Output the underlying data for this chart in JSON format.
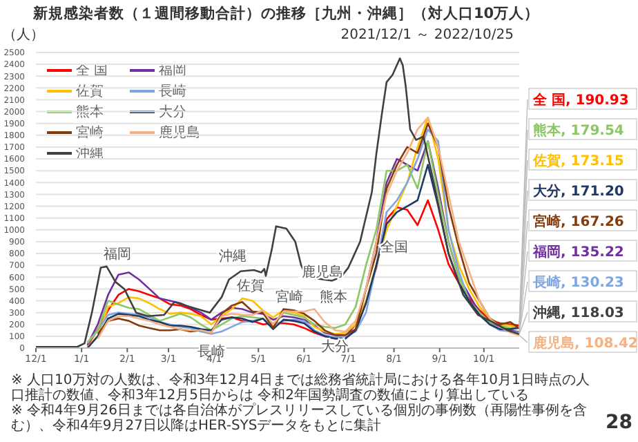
{
  "chart_data": {
    "type": "line",
    "title": "新規感染者数（１週間移動合計）の推移［九州・沖縄］（対人口10万人）",
    "subtitle": "2021/12/1 ～ 2022/10/25",
    "ylabel": "（人）",
    "x": [
      "2022-01-05",
      "2022-01-12",
      "2022-01-19",
      "2022-01-26",
      "2022-02-02",
      "2022-02-09",
      "2022-02-16",
      "2022-02-23",
      "2022-03-02",
      "2022-03-09",
      "2022-03-16",
      "2022-03-23",
      "2022-03-30",
      "2022-04-06",
      "2022-04-13",
      "2022-04-20",
      "2022-04-27",
      "2022-05-04",
      "2022-05-11",
      "2022-05-18",
      "2022-05-25",
      "2022-06-01",
      "2022-06-08",
      "2022-06-15",
      "2022-06-22",
      "2022-06-29",
      "2022-07-06",
      "2022-07-13",
      "2022-07-20",
      "2022-07-27",
      "2022-08-03",
      "2022-08-10",
      "2022-08-17",
      "2022-08-24",
      "2022-08-31",
      "2022-09-07",
      "2022-09-14",
      "2022-09-21",
      "2022-09-28",
      "2022-10-05",
      "2022-10-12",
      "2022-10-19",
      "2022-10-25"
    ],
    "series": [
      {
        "name": "全 国",
        "color": "#ff0000",
        "values": [
          20,
          160,
          320,
          450,
          500,
          480,
          450,
          420,
          370,
          360,
          330,
          280,
          240,
          250,
          260,
          230,
          230,
          200,
          210,
          210,
          200,
          170,
          130,
          100,
          80,
          80,
          160,
          390,
          680,
          1090,
          1190,
          1170,
          1040,
          1250,
          1000,
          710,
          550,
          420,
          320,
          240,
          210,
          200,
          190.93
        ],
        "value_labels": [
          null,
          null,
          null,
          null,
          null,
          null,
          null,
          null,
          null,
          null,
          null,
          null,
          null,
          null,
          null,
          null,
          null,
          null,
          null,
          null,
          null,
          null,
          null,
          null,
          null,
          null,
          null,
          null,
          null,
          null,
          null,
          null,
          null,
          null,
          null,
          null,
          null,
          null,
          null,
          null,
          null,
          null,
          "全 国, 190.93"
        ]
      },
      {
        "name": "福岡",
        "color": "#7030a0",
        "values": [
          30,
          200,
          450,
          620,
          640,
          580,
          500,
          420,
          400,
          380,
          340,
          300,
          240,
          300,
          340,
          330,
          300,
          290,
          240,
          270,
          260,
          240,
          190,
          130,
          110,
          100,
          200,
          500,
          900,
          1400,
          1600,
          1550,
          1500,
          1750,
          1350,
          900,
          600,
          450,
          300,
          220,
          180,
          150,
          135.22
        ],
        "value_labels": [
          null,
          null,
          null,
          null,
          null,
          null,
          null,
          null,
          null,
          null,
          null,
          null,
          null,
          null,
          null,
          null,
          null,
          null,
          null,
          null,
          null,
          null,
          null,
          null,
          null,
          null,
          null,
          null,
          null,
          null,
          null,
          null,
          null,
          null,
          null,
          null,
          null,
          null,
          null,
          null,
          null,
          null,
          "福岡, 135.22"
        ]
      },
      {
        "name": "佐賀",
        "color": "#ffc000",
        "values": [
          10,
          100,
          350,
          380,
          430,
          420,
          380,
          330,
          290,
          300,
          290,
          270,
          200,
          270,
          330,
          420,
          400,
          320,
          260,
          320,
          300,
          270,
          180,
          140,
          120,
          130,
          200,
          400,
          700,
          1000,
          1200,
          1400,
          1700,
          1950,
          1600,
          1000,
          700,
          500,
          350,
          250,
          200,
          190,
          173.15
        ],
        "value_labels": [
          null,
          null,
          null,
          null,
          null,
          null,
          null,
          null,
          null,
          null,
          null,
          null,
          null,
          null,
          null,
          null,
          null,
          null,
          null,
          null,
          null,
          null,
          null,
          null,
          null,
          null,
          null,
          null,
          null,
          null,
          null,
          null,
          null,
          null,
          null,
          null,
          null,
          null,
          null,
          null,
          null,
          null,
          "佐賀, 173.15"
        ]
      },
      {
        "name": "長崎",
        "color": "#7ea6e0",
        "values": [
          40,
          150,
          280,
          300,
          290,
          280,
          260,
          220,
          200,
          180,
          170,
          140,
          120,
          140,
          180,
          220,
          230,
          250,
          190,
          230,
          240,
          230,
          150,
          110,
          90,
          100,
          140,
          300,
          700,
          1150,
          1250,
          1400,
          1600,
          1850,
          1750,
          1000,
          650,
          400,
          300,
          200,
          150,
          140,
          130.23
        ],
        "value_labels": [
          null,
          null,
          null,
          null,
          null,
          null,
          null,
          null,
          null,
          null,
          null,
          null,
          null,
          null,
          null,
          null,
          null,
          null,
          null,
          null,
          null,
          null,
          null,
          null,
          null,
          null,
          null,
          null,
          null,
          null,
          null,
          null,
          null,
          null,
          null,
          null,
          null,
          null,
          null,
          null,
          null,
          null,
          "長崎, 130.23"
        ]
      },
      {
        "name": "熊本",
        "color": "#8cc665",
        "values": [
          50,
          150,
          400,
          370,
          340,
          330,
          280,
          230,
          260,
          290,
          260,
          200,
          150,
          200,
          250,
          270,
          260,
          250,
          180,
          300,
          280,
          260,
          200,
          180,
          170,
          200,
          350,
          700,
          1000,
          1500,
          1500,
          1550,
          1350,
          1750,
          1300,
          900,
          600,
          400,
          300,
          220,
          190,
          170,
          179.54
        ],
        "value_labels": [
          null,
          null,
          null,
          null,
          null,
          null,
          null,
          null,
          null,
          null,
          null,
          null,
          null,
          null,
          null,
          null,
          null,
          null,
          null,
          null,
          null,
          null,
          null,
          null,
          null,
          null,
          null,
          null,
          null,
          null,
          null,
          null,
          null,
          null,
          null,
          null,
          null,
          null,
          null,
          null,
          null,
          null,
          "熊本, 179.54"
        ]
      },
      {
        "name": "大分",
        "color": "#1f3864",
        "values": [
          0,
          100,
          250,
          290,
          280,
          270,
          240,
          220,
          190,
          190,
          180,
          160,
          150,
          240,
          260,
          250,
          220,
          250,
          160,
          240,
          230,
          210,
          140,
          100,
          80,
          80,
          150,
          380,
          700,
          1050,
          1150,
          1200,
          1250,
          1550,
          1200,
          800,
          550,
          400,
          280,
          200,
          160,
          160,
          171.2
        ],
        "value_labels": [
          null,
          null,
          null,
          null,
          null,
          null,
          null,
          null,
          null,
          null,
          null,
          null,
          null,
          null,
          null,
          null,
          null,
          null,
          null,
          null,
          null,
          null,
          null,
          null,
          null,
          null,
          null,
          null,
          null,
          null,
          null,
          null,
          null,
          null,
          null,
          null,
          null,
          null,
          null,
          null,
          null,
          null,
          "大分, 171.20"
        ]
      },
      {
        "name": "宮崎",
        "color": "#843c0c",
        "values": [
          null,
          120,
          230,
          250,
          230,
          190,
          170,
          150,
          150,
          160,
          140,
          150,
          130,
          290,
          360,
          390,
          310,
          300,
          170,
          330,
          320,
          290,
          230,
          150,
          110,
          110,
          160,
          500,
          800,
          1350,
          1550,
          1700,
          1650,
          1900,
          1700,
          1200,
          850,
          550,
          400,
          250,
          200,
          220,
          167.26
        ],
        "value_labels": [
          null,
          null,
          null,
          null,
          null,
          null,
          null,
          null,
          null,
          null,
          null,
          null,
          null,
          null,
          null,
          null,
          null,
          null,
          null,
          null,
          null,
          null,
          null,
          null,
          null,
          null,
          null,
          null,
          null,
          null,
          null,
          null,
          null,
          null,
          null,
          null,
          null,
          null,
          null,
          null,
          null,
          null,
          "宮崎, 167.26"
        ]
      },
      {
        "name": "鹿児島",
        "color": "#f4b183",
        "values": [
          null,
          80,
          230,
          270,
          270,
          250,
          230,
          200,
          180,
          160,
          150,
          150,
          130,
          270,
          290,
          280,
          280,
          320,
          200,
          310,
          310,
          310,
          330,
          220,
          150,
          140,
          230,
          500,
          900,
          1300,
          1500,
          1650,
          1850,
          1950,
          1700,
          1300,
          900,
          650,
          400,
          250,
          180,
          130,
          108.42
        ],
        "value_labels": [
          null,
          null,
          null,
          null,
          null,
          null,
          null,
          null,
          null,
          null,
          null,
          null,
          null,
          null,
          null,
          null,
          null,
          null,
          null,
          null,
          null,
          null,
          null,
          null,
          null,
          null,
          null,
          null,
          null,
          null,
          null,
          null,
          null,
          null,
          null,
          null,
          null,
          null,
          null,
          null,
          null,
          null,
          "鹿児島, 108.42"
        ]
      },
      {
        "name": "沖縄",
        "color": "#404040",
        "x": [
          "2021-12-01",
          "2021-12-29",
          "2022-01-03",
          "2022-01-08",
          "2022-01-14",
          "2022-01-18",
          "2022-01-24",
          "2022-01-30",
          "2022-02-07",
          "2022-02-15",
          "2022-02-26",
          "2022-03-05",
          "2022-03-15",
          "2022-03-29",
          "2022-04-06",
          "2022-04-11",
          "2022-04-19",
          "2022-04-28",
          "2022-05-03",
          "2022-05-05",
          "2022-05-06",
          "2022-05-08",
          "2022-05-10",
          "2022-05-13",
          "2022-05-20",
          "2022-05-26",
          "2022-05-30",
          "2022-06-03",
          "2022-06-20",
          "2022-06-26",
          "2022-07-01",
          "2022-07-09",
          "2022-07-17",
          "2022-07-20",
          "2022-07-24",
          "2022-07-27",
          "2022-07-31",
          "2022-08-05",
          "2022-08-07",
          "2022-08-09",
          "2022-08-12",
          "2022-08-16",
          "2022-08-21",
          "2022-08-28",
          "2022-09-07",
          "2022-09-17",
          "2022-09-27",
          "2022-10-07",
          "2022-10-17",
          "2022-10-25"
        ],
        "values": [
          10,
          10,
          40,
          300,
          680,
          690,
          560,
          500,
          300,
          270,
          280,
          390,
          350,
          300,
          430,
          580,
          650,
          660,
          640,
          670,
          610,
          720,
          830,
          1030,
          1010,
          900,
          700,
          600,
          570,
          600,
          680,
          900,
          1320,
          1640,
          2000,
          2250,
          2310,
          2450,
          2390,
          2210,
          1850,
          1760,
          1790,
          1400,
          800,
          450,
          280,
          220,
          150,
          118.03
        ],
        "value_labels": [
          null,
          null,
          null,
          null,
          null,
          null,
          null,
          null,
          null,
          null,
          null,
          null,
          null,
          null,
          null,
          null,
          null,
          null,
          null,
          null,
          null,
          null,
          null,
          null,
          null,
          null,
          null,
          null,
          null,
          null,
          null,
          null,
          null,
          null,
          null,
          null,
          null,
          null,
          null,
          null,
          null,
          null,
          null,
          null,
          null,
          null,
          null,
          null,
          null,
          "沖縄, 118.03"
        ]
      }
    ],
    "xlim": [
      "2021-12-01",
      "2022-10-25"
    ],
    "ylim": [
      0,
      2500
    ],
    "yticks": [
      0,
      100,
      200,
      300,
      400,
      500,
      600,
      700,
      800,
      900,
      1000,
      1100,
      1200,
      1300,
      1400,
      1500,
      1600,
      1700,
      1800,
      1900,
      2000,
      2100,
      2200,
      2300,
      2400,
      2500
    ],
    "xticks": [
      {
        "value": "2021-12-01",
        "label": "12/1"
      },
      {
        "value": "2022-01-01",
        "label": "1/1"
      },
      {
        "value": "2022-02-01",
        "label": "2/1"
      },
      {
        "value": "2022-03-01",
        "label": "3/1"
      },
      {
        "value": "2022-04-01",
        "label": "4/1"
      },
      {
        "value": "2022-05-01",
        "label": "5/1"
      },
      {
        "value": "2022-06-01",
        "label": "6/1"
      },
      {
        "value": "2022-07-01",
        "label": "7/1"
      },
      {
        "value": "2022-08-01",
        "label": "8/1"
      },
      {
        "value": "2022-09-01",
        "label": "9/1"
      },
      {
        "value": "2022-10-01",
        "label": "10/1"
      }
    ],
    "grid": "y",
    "legend": "top left",
    "marker": "none",
    "line_style": "solid",
    "annotations": [
      {
        "text": "福岡",
        "x": "2022-02-02",
        "y": 640
      },
      {
        "text": "沖縄",
        "x": "2022-04-19",
        "y": 650
      },
      {
        "text": "佐賀",
        "x": "2022-04-20",
        "y": 420
      },
      {
        "text": "宮崎",
        "x": "2022-05-18",
        "y": 330
      },
      {
        "text": "鹿児島",
        "x": "2022-06-08",
        "y": 330
      },
      {
        "text": "長崎",
        "x": "2022-03-30",
        "y": 120
      },
      {
        "text": "熊本",
        "x": "2022-07-06",
        "y": 350
      },
      {
        "text": "大分",
        "x": "2022-06-22",
        "y": 80
      },
      {
        "text": "全国",
        "x": "2022-08-03",
        "y": 1190
      },
      "※ 人口10万対の人数は、令和3年12月4日までは総務省統計局における各年10月1日時点の人口推計の数値、令和3年12月5日からは 令和2年国勢調査の数値により算出している",
      "※ 令和4年9月26日までは各自治体がプレスリリースしている個別の事例数（再陽性事例を含む）、令和4年9月27日以降はHER-SYSデータをもとに集計",
      "28"
    ]
  }
}
